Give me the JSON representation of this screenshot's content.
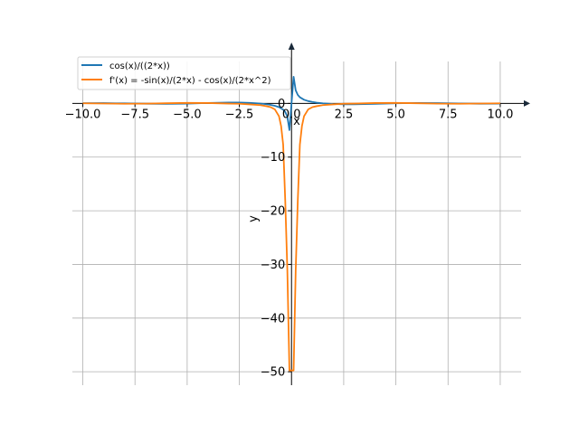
{
  "chart_data": {
    "type": "line",
    "xlabel": "x",
    "ylabel": "y",
    "xlim": [
      -10.5,
      11.0
    ],
    "ylim": [
      -52.5,
      9.5
    ],
    "xticks": [
      -10.0,
      -7.5,
      -5.0,
      -2.5,
      0.0,
      2.5,
      5.0,
      7.5,
      10.0
    ],
    "xtick_labels": [
      "−10.0",
      "−7.5",
      "−5.0",
      "−2.5",
      "0.0",
      "2.5",
      "5.0",
      "7.5",
      "10.0"
    ],
    "yticks": [
      0,
      -10,
      -20,
      -30,
      -40,
      -50
    ],
    "ytick_labels": [
      "0",
      "−10",
      "−20",
      "−30",
      "−40",
      "−50"
    ],
    "grid": true,
    "legend_position": "top-left",
    "series": [
      {
        "name": "cos(x)/((2*x))",
        "color": "#1f77b4",
        "x": [
          -10,
          -9,
          -8,
          -7,
          -6,
          -5,
          -4,
          -3,
          -2.5,
          -2,
          -1.5,
          -1.2,
          -1,
          -0.8,
          -0.6,
          -0.4,
          -0.3,
          -0.2,
          -0.1,
          0.1,
          0.2,
          0.3,
          0.4,
          0.6,
          0.8,
          1,
          1.2,
          1.5,
          2,
          2.5,
          3,
          4,
          5,
          6,
          7,
          8,
          9,
          10
        ],
        "y": [
          0.042,
          0.051,
          0.009,
          -0.054,
          -0.08,
          -0.028,
          0.082,
          0.165,
          0.16,
          0.104,
          -0.024,
          -0.151,
          -0.27,
          -0.435,
          -0.688,
          -1.151,
          -1.592,
          -2.45,
          -4.975,
          4.975,
          2.45,
          1.592,
          1.151,
          0.688,
          0.435,
          0.27,
          0.151,
          0.024,
          -0.104,
          -0.16,
          -0.165,
          -0.082,
          0.028,
          0.08,
          0.054,
          -0.009,
          -0.051,
          -0.042
        ]
      },
      {
        "name": "f'(x) = -sin(x)/(2*x) - cos(x)/(2*x^2)",
        "color": "#ff7f0e",
        "x": [
          -10,
          -9,
          -8,
          -7,
          -6,
          -5,
          -4,
          -3,
          -2.5,
          -2,
          -1.5,
          -1.2,
          -1,
          -0.8,
          -0.6,
          -0.5,
          -0.4,
          -0.3,
          -0.2,
          -0.1,
          0.1,
          0.2,
          0.3,
          0.4,
          0.5,
          0.6,
          0.8,
          1,
          1.2,
          1.5,
          2,
          2.5,
          3,
          4,
          5,
          6,
          7,
          8,
          9,
          10
        ],
        "y": [
          0.023,
          -0.018,
          -0.063,
          -0.039,
          0.036,
          0.101,
          0.074,
          -0.032,
          -0.056,
          -0.175,
          -0.316,
          -0.514,
          -0.691,
          -1.107,
          -2.383,
          -4.19,
          -7.678,
          -18.175,
          -31.105,
          -49.75,
          -49.75,
          -31.105,
          -18.175,
          -7.678,
          -4.19,
          -2.383,
          -1.107,
          -0.691,
          -0.514,
          -0.316,
          -0.175,
          -0.056,
          -0.032,
          0.074,
          0.101,
          0.036,
          -0.039,
          -0.063,
          -0.018,
          0.023
        ]
      }
    ]
  }
}
